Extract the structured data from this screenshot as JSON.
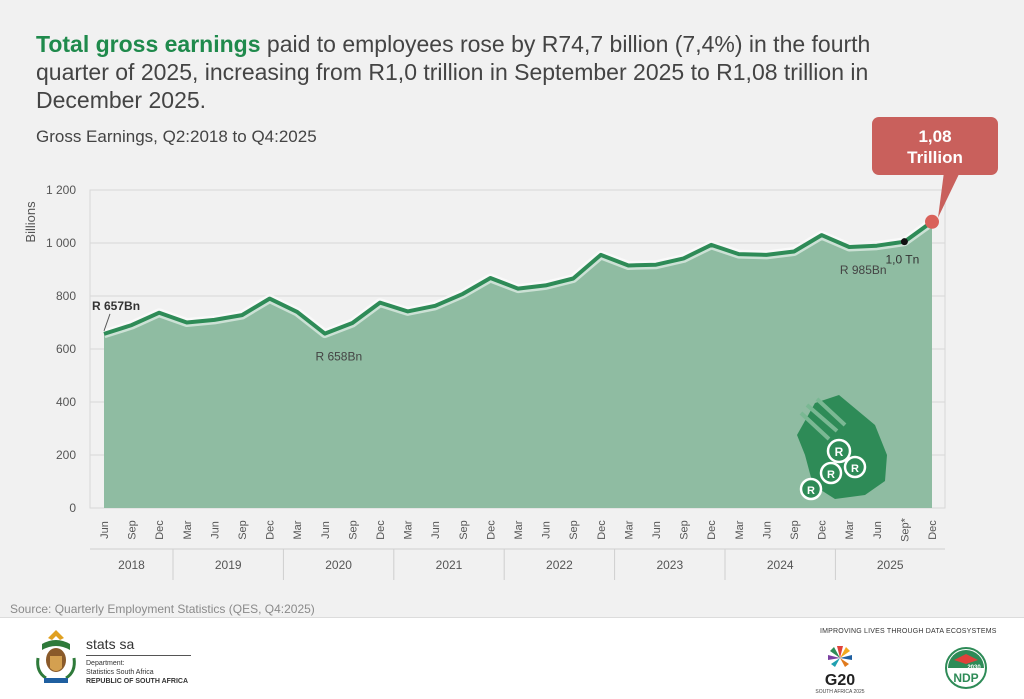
{
  "headline": {
    "highlight": "Total gross earnings",
    "rest": " paid to employees rose by R74,7 billion (7,4%) in the fourth quarter of 2025, increasing from R1,0 trillion in September 2025 to R1,08 trillion in December 2025."
  },
  "subtitle": "Gross Earnings, Q2:2018 to Q4:2025",
  "source": "Source: Quarterly Employment Statistics (QES, Q4:2025)",
  "chart_data": {
    "type": "area",
    "ylabel": "Billions",
    "ylim": [
      0,
      1200
    ],
    "yticks": [
      0,
      200,
      400,
      600,
      800,
      1000,
      1200
    ],
    "ytick_labels": [
      "0",
      "200",
      "400",
      "600",
      "800",
      "1 000",
      "1 200"
    ],
    "x": [
      "Jun",
      "Sep",
      "Dec",
      "Mar",
      "Jun",
      "Sep",
      "Dec",
      "Mar",
      "Jun",
      "Sep",
      "Dec",
      "Mar",
      "Jun",
      "Sep",
      "Dec",
      "Mar",
      "Jun",
      "Sep",
      "Dec",
      "Mar",
      "Jun",
      "Sep",
      "Dec",
      "Mar",
      "Jun",
      "Sep",
      "Dec",
      "Mar",
      "Jun",
      "Sep*",
      "Dec"
    ],
    "years": [
      {
        "label": "2018",
        "count": 3
      },
      {
        "label": "2019",
        "count": 4
      },
      {
        "label": "2020",
        "count": 4
      },
      {
        "label": "2021",
        "count": 4
      },
      {
        "label": "2022",
        "count": 4
      },
      {
        "label": "2023",
        "count": 4
      },
      {
        "label": "2024",
        "count": 4
      },
      {
        "label": "2025",
        "count": 4
      }
    ],
    "values": [
      657,
      690,
      737,
      700,
      710,
      728,
      790,
      740,
      658,
      698,
      775,
      742,
      763,
      808,
      868,
      828,
      840,
      866,
      955,
      915,
      918,
      942,
      993,
      958,
      955,
      968,
      1030,
      985,
      990,
      1005,
      1080
    ],
    "annotations": [
      {
        "index": 0,
        "text": "R 657Bn"
      },
      {
        "index": 8,
        "text": "R 658Bn"
      },
      {
        "index": 27,
        "text": "R 985Bn"
      },
      {
        "index": 29,
        "text": "1,0 Tn"
      }
    ],
    "callout": {
      "index": 30,
      "line1": "1,08",
      "line2": "Trillion"
    },
    "colors": {
      "line": "#2e8b57",
      "area": "#8fbca2",
      "callout": "#c9605c",
      "last_point": "#d9615a"
    }
  },
  "footer": {
    "stats_name": "stats sa",
    "dept_line1": "Department:",
    "dept_line2": "Statistics South Africa",
    "dept_line3": "REPUBLIC OF SOUTH AFRICA",
    "improving": "IMPROVING LIVES THROUGH DATA ECOSYSTEMS",
    "g20_name": "G20",
    "g20_sub": "SOUTH AFRICA 2025",
    "ndp_name": "NDP",
    "ndp_year": "2030"
  }
}
